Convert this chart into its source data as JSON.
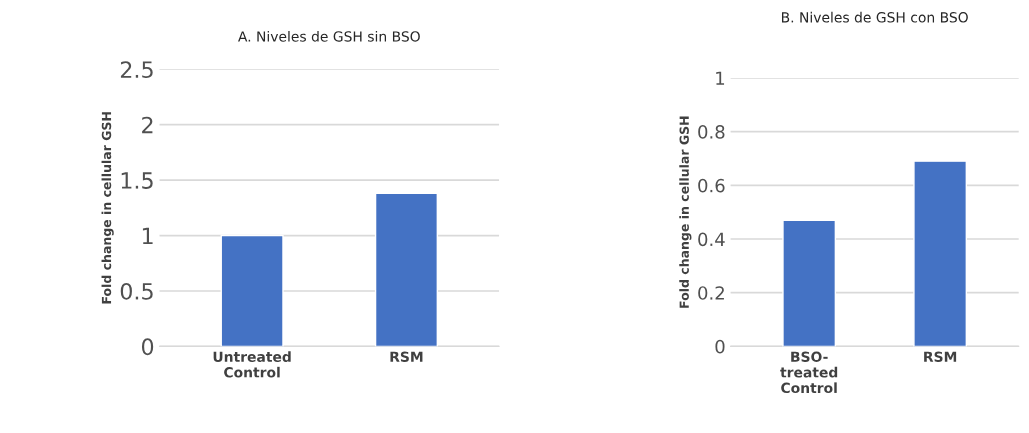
{
  "chart_data": [
    {
      "type": "bar",
      "title": "A. Niveles de GSH sin BSO",
      "ylabel": "Fold change in cellular GSH",
      "categories": [
        "Untreated\nControl",
        "RSM"
      ],
      "values": [
        1.0,
        1.38
      ],
      "color": "#4472c4",
      "ylim": [
        0,
        2.5
      ],
      "yticks": [
        0,
        0.5,
        1,
        1.5,
        2,
        2.5
      ],
      "grid": "y"
    },
    {
      "type": "bar",
      "title": "B. Niveles de GSH con BSO",
      "ylabel": "Fold change in cellular GSH",
      "categories": [
        "BSO-\ntreated\nControl",
        "RSM"
      ],
      "values": [
        0.47,
        0.69
      ],
      "color": "#4472c4",
      "ylim": [
        0,
        1
      ],
      "yticks": [
        0,
        0.2,
        0.4,
        0.6,
        0.8,
        1
      ],
      "grid": "y"
    }
  ]
}
